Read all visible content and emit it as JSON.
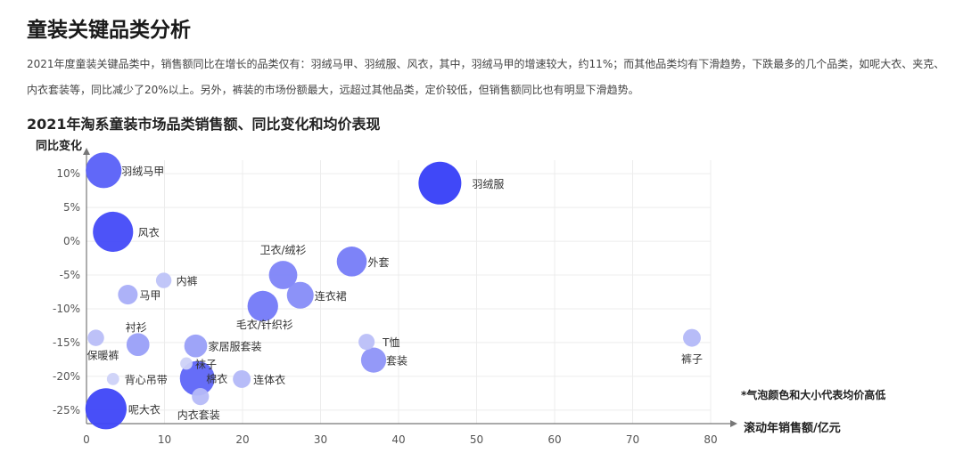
{
  "header": {
    "title": "童装关键品类分析",
    "summary": "2021年度童装关键品类中，销售额同比在增长的品类仅有：羽绒马甲、羽绒服、风衣，其中，羽绒马甲的增速较大，约11%；而其他品类均有下滑趋势，下跌最多的几个品类，如呢大衣、夹克、内衣套装等，同比减少了20%以上。另外，裤装的市场份额最大，远超过其他品类，定价较低，但销售额同比也有明显下滑趋势。"
  },
  "chart_data": {
    "type": "scatter",
    "title": "2021年淘系童装市场品类销售额、同比变化和均价表现",
    "xlabel": "滚动年销售额/亿元",
    "ylabel": "同比变化",
    "note": "*气泡颜色和大小代表均价高低",
    "xlim": [
      0,
      80
    ],
    "ylim": [
      -27,
      12
    ],
    "x_ticks": [
      "0",
      "10",
      "20",
      "30",
      "40",
      "50",
      "60",
      "70",
      "80"
    ],
    "y_ticks": [
      "10%",
      "5%",
      "0%",
      "-5%",
      "-10%",
      "-15%",
      "-20%",
      "-25%"
    ],
    "grid": true,
    "points": [
      {
        "label": "羽绒马甲",
        "x": 2.2,
        "y": 10.5,
        "price": 0.78
      },
      {
        "label": "羽绒服",
        "x": 45.3,
        "y": 8.6,
        "price": 1.0
      },
      {
        "label": "风衣",
        "x": 3.4,
        "y": 1.4,
        "price": 0.92
      },
      {
        "label": "卫衣/绒衫",
        "x": 25.2,
        "y": -5.0,
        "price": 0.55
      },
      {
        "label": "外套",
        "x": 34.0,
        "y": -3.0,
        "price": 0.6
      },
      {
        "label": "内裤",
        "x": 9.9,
        "y": -5.8,
        "price": 0.15
      },
      {
        "label": "马甲",
        "x": 5.3,
        "y": -7.9,
        "price": 0.28
      },
      {
        "label": "连衣裙",
        "x": 27.4,
        "y": -8.0,
        "price": 0.5
      },
      {
        "label": "毛衣/针织衫",
        "x": 22.6,
        "y": -9.6,
        "price": 0.62
      },
      {
        "label": "衬衫",
        "x": 6.6,
        "y": -15.3,
        "price": 0.38
      },
      {
        "label": "保暖裤",
        "x": 1.2,
        "y": -14.3,
        "price": 0.18
      },
      {
        "label": "家居服套装",
        "x": 14.0,
        "y": -15.5,
        "price": 0.38
      },
      {
        "label": "T恤",
        "x": 35.9,
        "y": -14.9,
        "price": 0.17
      },
      {
        "label": "裤子",
        "x": 77.6,
        "y": -14.3,
        "price": 0.22
      },
      {
        "label": "袜子",
        "x": 12.8,
        "y": -18.1,
        "price": 0.05
      },
      {
        "label": "套装",
        "x": 36.8,
        "y": -17.6,
        "price": 0.45
      },
      {
        "label": "背心吊带",
        "x": 3.4,
        "y": -20.4,
        "price": 0.05
      },
      {
        "label": "棉衣",
        "x": 14.2,
        "y": -20.3,
        "price": 0.75
      },
      {
        "label": "连体衣",
        "x": 19.9,
        "y": -20.4,
        "price": 0.22
      },
      {
        "label": "内衣套装",
        "x": 14.6,
        "y": -23.0,
        "price": 0.2
      },
      {
        "label": "呢大衣",
        "x": 2.5,
        "y": -24.8,
        "price": 0.95
      }
    ]
  }
}
